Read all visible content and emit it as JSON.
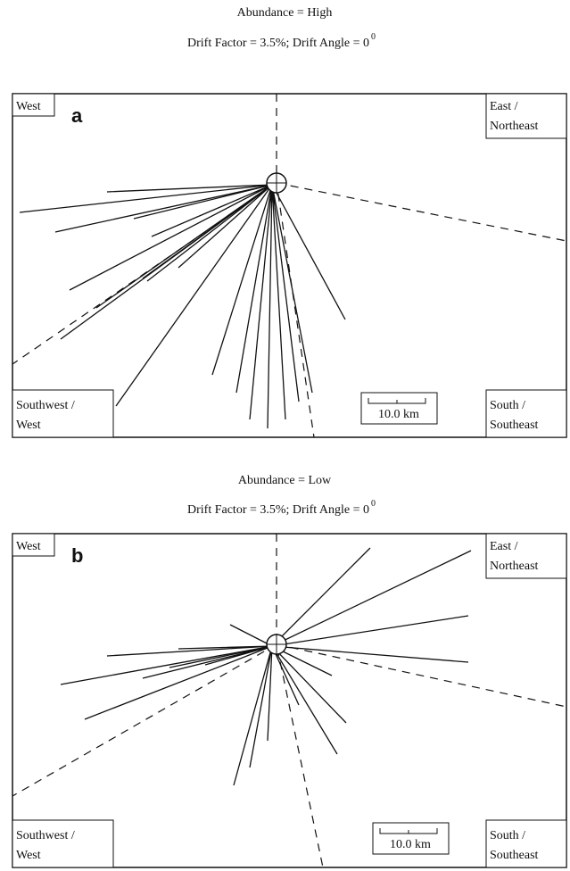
{
  "panels": [
    {
      "title": "Abundance = High",
      "subtitle": "Drift Factor = 3.5%; Drift Angle = 0",
      "superscript": "0",
      "letter": "a",
      "west": "West",
      "east": [
        "East /",
        "Northeast"
      ],
      "southwest": [
        "Southwest /",
        "West"
      ],
      "south": [
        "South /",
        "Southeast"
      ],
      "scale": "10.0 km"
    },
    {
      "title": "Abundance = Low",
      "subtitle": "Drift Factor = 3.5%; Drift Angle = 0",
      "superscript": "0",
      "letter": "b",
      "west": "West",
      "east": [
        "East /",
        "Northeast"
      ],
      "southwest": [
        "Southwest /",
        "West"
      ],
      "south": [
        "South /",
        "Southeast"
      ],
      "scale": "10.0 km"
    }
  ]
}
